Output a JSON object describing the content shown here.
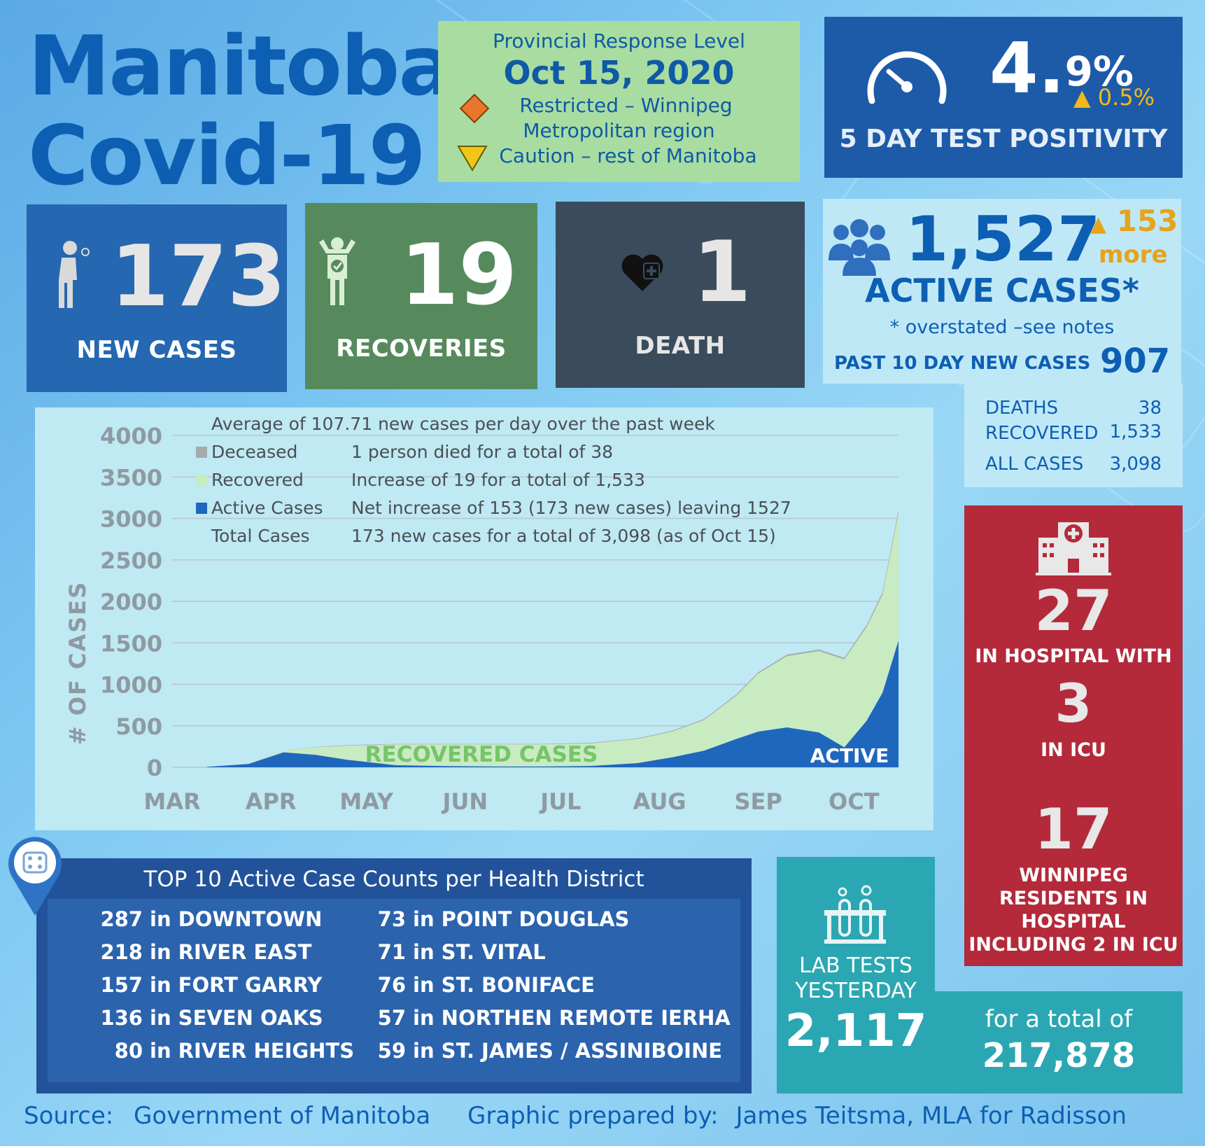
{
  "title": {
    "line1": "Manitoba",
    "line2": "Covid-19"
  },
  "response_level": {
    "heading": "Provincial Response Level",
    "date": "Oct 15, 2020",
    "restricted_line1": "Restricted – Winnipeg",
    "restricted_line2": "Metropolitan region",
    "caution": "Caution – rest of Manitoba",
    "colors": {
      "restricted": "#e8772e",
      "caution": "#f2c51a"
    }
  },
  "test_positivity": {
    "value_int": "4.",
    "value_dec": "9%",
    "change": "0.5%",
    "label": "5 DAY TEST POSITIVITY",
    "icon": "speedometer-icon"
  },
  "tiles": {
    "new_cases": {
      "value": "173",
      "label": "NEW CASES",
      "color": "#2567b0",
      "icon": "sick-person-icon"
    },
    "recoveries": {
      "value": "19",
      "label": "RECOVERIES",
      "color": "#568a5d",
      "icon": "recovered-person-icon"
    },
    "death": {
      "value": "1",
      "label": "DEATH",
      "color": "#3a4c5c",
      "icon": "heart-plus-icon"
    }
  },
  "active": {
    "value": "1,527",
    "change": "153",
    "change_word": "more",
    "label": "ACTIVE CASES*",
    "note": "* overstated –see notes",
    "past10_label": "PAST 10 DAY NEW CASES",
    "past10_value": "907",
    "icon": "people-group-icon"
  },
  "totals": {
    "deaths_label": "DEATHS",
    "deaths": "38",
    "recovered_label": "RECOVERED",
    "recovered": "1,533",
    "all_label": "ALL CASES",
    "all": "3,098"
  },
  "hospital": {
    "icon": "hospital-icon",
    "in_hospital": "27",
    "in_hospital_label": "IN HOSPITAL WITH",
    "icu": "3",
    "icu_label": "IN ICU",
    "winnipeg": "17",
    "winnipeg_label": [
      "WINNIPEG",
      "RESIDENTS IN",
      "HOSPITAL",
      "INCLUDING 2 IN ICU"
    ]
  },
  "chart_data": {
    "type": "area",
    "ylabel": "# OF CASES",
    "ylim": [
      0,
      4000
    ],
    "yticks": [
      "0",
      "500",
      "1000",
      "1500",
      "2000",
      "2500",
      "3000",
      "3500",
      "4000"
    ],
    "xticks": [
      "MAR",
      "APR",
      "MAY",
      "JUN",
      "JUL",
      "AUG",
      "SEP",
      "OCT"
    ],
    "x_start": "2020-03-01",
    "x_end": "2020-10-15",
    "grid": true,
    "legend_header": "Average of 107.71 new cases per day over the past week",
    "legend": [
      {
        "name": "Deceased",
        "note": "1 person died for a total of 38",
        "color": "#a7aaad"
      },
      {
        "name": "Recovered",
        "note": "Increase of 19 for a total of 1,533",
        "color": "#c8ebc2"
      },
      {
        "name": "Active Cases",
        "note": "Net increase of 153 (173 new cases) leaving 1527",
        "color": "#1f67bd"
      },
      {
        "name": "Total Cases",
        "note": "173 new cases for a total of 3,098 (as of Oct 15)",
        "color": ""
      }
    ],
    "annotations": {
      "recovered": "RECOVERED CASES",
      "active": "ACTIVE"
    },
    "x": [
      "2020-03-12",
      "2020-03-25",
      "2020-04-05",
      "2020-04-15",
      "2020-04-25",
      "2020-05-10",
      "2020-05-25",
      "2020-06-10",
      "2020-06-25",
      "2020-07-10",
      "2020-07-25",
      "2020-08-05",
      "2020-08-15",
      "2020-08-25",
      "2020-09-01",
      "2020-09-10",
      "2020-09-20",
      "2020-09-28",
      "2020-10-05",
      "2020-10-10",
      "2020-10-15"
    ],
    "series": [
      {
        "name": "Active Cases",
        "values": [
          5,
          40,
          180,
          150,
          90,
          25,
          15,
          10,
          10,
          15,
          50,
          120,
          200,
          340,
          430,
          480,
          420,
          240,
          560,
          900,
          1527
        ]
      },
      {
        "name": "Recovered",
        "values": [
          0,
          5,
          20,
          90,
          170,
          250,
          260,
          265,
          265,
          270,
          290,
          310,
          370,
          520,
          700,
          860,
          980,
          1060,
          1130,
          1180,
          1533
        ]
      },
      {
        "name": "Deceased",
        "values": [
          0,
          0,
          2,
          5,
          7,
          7,
          7,
          7,
          7,
          8,
          8,
          10,
          12,
          15,
          16,
          18,
          19,
          20,
          24,
          32,
          38
        ]
      }
    ]
  },
  "districts": {
    "title": "TOP 10 Active Case Counts per Health District",
    "icon": "map-pin-icon",
    "left": [
      {
        "n": "287",
        "name": "in DOWNTOWN"
      },
      {
        "n": "218",
        "name": "in RIVER EAST"
      },
      {
        "n": "157",
        "name": "in FORT GARRY"
      },
      {
        "n": "136",
        "name": "in SEVEN OAKS"
      },
      {
        "n": "80",
        "name": "in RIVER HEIGHTS"
      }
    ],
    "right": [
      {
        "n": "73",
        "name": "in POINT DOUGLAS"
      },
      {
        "n": "71",
        "name": "in ST. VITAL"
      },
      {
        "n": "76",
        "name": "in ST. BONIFACE"
      },
      {
        "n": "57",
        "name": "in NORTHEN REMOTE IERHA"
      },
      {
        "n": "59",
        "name": "in ST. JAMES / ASSINIBOINE"
      }
    ]
  },
  "lab": {
    "icon": "test-tubes-icon",
    "label1": "LAB TESTS",
    "label2": "YESTERDAY",
    "value": "2,117",
    "total_label": "for a total of",
    "total": "217,878"
  },
  "footer": {
    "source_label": "Source:",
    "source": "Government of Manitoba",
    "prepared_label": "Graphic prepared by:",
    "prepared": "James Teitsma, MLA for Radisson"
  }
}
